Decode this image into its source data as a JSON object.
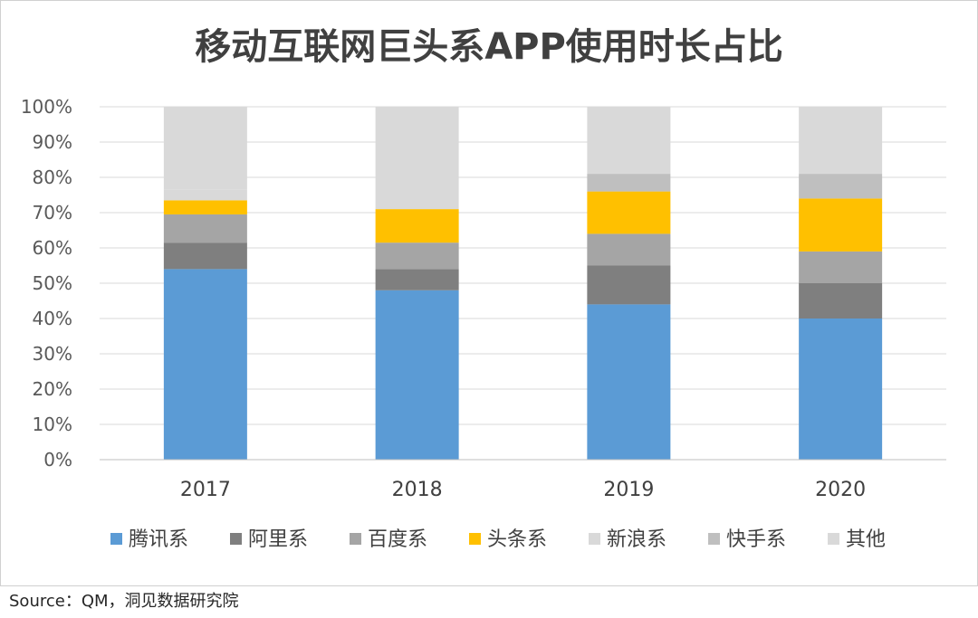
{
  "chart_data": {
    "type": "bar",
    "stacked": true,
    "title": "移动互联网巨头系APP使用时长占比",
    "categories": [
      "2017",
      "2018",
      "2019",
      "2020"
    ],
    "ylim": [
      0,
      100
    ],
    "yticks": [
      "0%",
      "10%",
      "20%",
      "30%",
      "40%",
      "50%",
      "60%",
      "70%",
      "80%",
      "90%",
      "100%"
    ],
    "grid": true,
    "legend_position": "bottom",
    "series": [
      {
        "name": "腾讯系",
        "color": "#5b9bd5",
        "values": [
          54,
          48,
          44,
          40
        ]
      },
      {
        "name": "阿里系",
        "color": "#7f7f7f",
        "values": [
          7.5,
          6,
          11,
          10
        ]
      },
      {
        "name": "百度系",
        "color": "#a5a5a5",
        "values": [
          8,
          7.5,
          9,
          9
        ]
      },
      {
        "name": "头条系",
        "color": "#ffc000",
        "values": [
          4,
          9.5,
          12,
          15
        ]
      },
      {
        "name": "新浪系",
        "color": "#d9d9d9",
        "values": [
          3,
          4,
          0,
          0
        ]
      },
      {
        "name": "快手系",
        "color": "#bfbfbf",
        "values": [
          0,
          0,
          5,
          7
        ]
      },
      {
        "name": "其他",
        "color": "#d9d9d9",
        "values": [
          23.5,
          25,
          19,
          19
        ]
      }
    ]
  },
  "source": "Source：QM，洞见数据研究院"
}
